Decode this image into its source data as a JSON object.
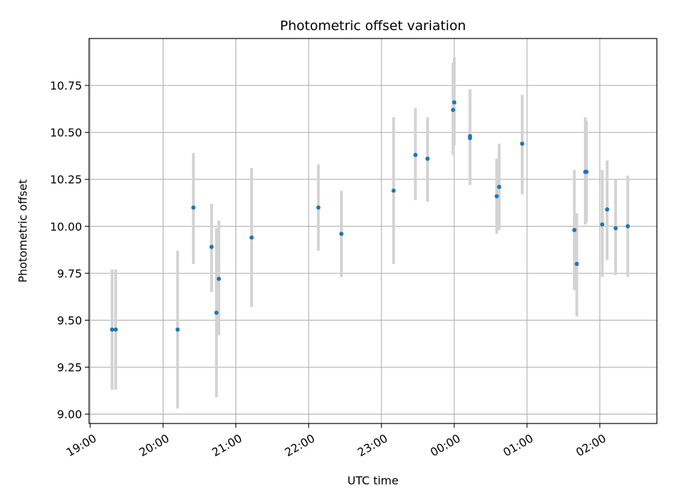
{
  "chart_data": {
    "type": "scatter",
    "title": "Photometric offset variation",
    "xlabel": "UTC time",
    "ylabel": "Photometric offset",
    "x_axis_type": "time",
    "x_range": [
      "18:59",
      "02:47"
    ],
    "ylim": [
      8.95,
      11.0
    ],
    "x_ticks": [
      "19:00",
      "20:00",
      "21:00",
      "22:00",
      "23:00",
      "00:00",
      "01:00",
      "02:00"
    ],
    "y_ticks": [
      "9.00",
      "9.25",
      "9.50",
      "9.75",
      "10.00",
      "10.25",
      "10.50",
      "10.75"
    ],
    "grid": true,
    "marker_color": "#1f77b4",
    "errorbar_color": "#d3d3d3",
    "points": [
      {
        "x": "19:18",
        "y": 9.45,
        "ylow": 9.13,
        "yhigh": 9.77
      },
      {
        "x": "19:21",
        "y": 9.45,
        "ylow": 9.13,
        "yhigh": 9.77
      },
      {
        "x": "20:12",
        "y": 9.45,
        "ylow": 9.03,
        "yhigh": 9.87
      },
      {
        "x": "20:25",
        "y": 10.1,
        "ylow": 9.8,
        "yhigh": 10.39
      },
      {
        "x": "20:40",
        "y": 9.89,
        "ylow": 9.65,
        "yhigh": 10.12
      },
      {
        "x": "20:44",
        "y": 9.54,
        "ylow": 9.09,
        "yhigh": 9.99
      },
      {
        "x": "20:46",
        "y": 9.72,
        "ylow": 9.42,
        "yhigh": 10.03
      },
      {
        "x": "21:13",
        "y": 9.94,
        "ylow": 9.57,
        "yhigh": 10.31
      },
      {
        "x": "22:08",
        "y": 10.1,
        "ylow": 9.87,
        "yhigh": 10.33
      },
      {
        "x": "22:27",
        "y": 9.96,
        "ylow": 9.73,
        "yhigh": 10.19
      },
      {
        "x": "23:10",
        "y": 10.19,
        "ylow": 9.8,
        "yhigh": 10.58
      },
      {
        "x": "23:28",
        "y": 10.38,
        "ylow": 10.14,
        "yhigh": 10.63
      },
      {
        "x": "23:38",
        "y": 10.36,
        "ylow": 10.13,
        "yhigh": 10.58
      },
      {
        "x": "23:59",
        "y": 10.62,
        "ylow": 10.38,
        "yhigh": 10.87
      },
      {
        "x": "00:00",
        "y": 10.66,
        "ylow": 10.43,
        "yhigh": 10.9
      },
      {
        "x": "00:13",
        "y": 10.47,
        "ylow": 10.22,
        "yhigh": 10.73
      },
      {
        "x": "00:13",
        "y": 10.48,
        "ylow": 10.24,
        "yhigh": 10.72
      },
      {
        "x": "00:35",
        "y": 10.16,
        "ylow": 9.96,
        "yhigh": 10.36
      },
      {
        "x": "00:37",
        "y": 10.21,
        "ylow": 9.98,
        "yhigh": 10.44
      },
      {
        "x": "00:56",
        "y": 10.44,
        "ylow": 10.17,
        "yhigh": 10.7
      },
      {
        "x": "01:39",
        "y": 9.98,
        "ylow": 9.66,
        "yhigh": 10.3
      },
      {
        "x": "01:41",
        "y": 9.8,
        "ylow": 9.52,
        "yhigh": 10.07
      },
      {
        "x": "01:48",
        "y": 10.29,
        "ylow": 10.01,
        "yhigh": 10.58
      },
      {
        "x": "01:49",
        "y": 10.29,
        "ylow": 10.02,
        "yhigh": 10.56
      },
      {
        "x": "02:02",
        "y": 10.01,
        "ylow": 9.73,
        "yhigh": 10.3
      },
      {
        "x": "02:06",
        "y": 10.09,
        "ylow": 9.82,
        "yhigh": 10.35
      },
      {
        "x": "02:13",
        "y": 9.99,
        "ylow": 9.74,
        "yhigh": 10.25
      },
      {
        "x": "02:23",
        "y": 10.0,
        "ylow": 9.73,
        "yhigh": 10.27
      }
    ]
  }
}
